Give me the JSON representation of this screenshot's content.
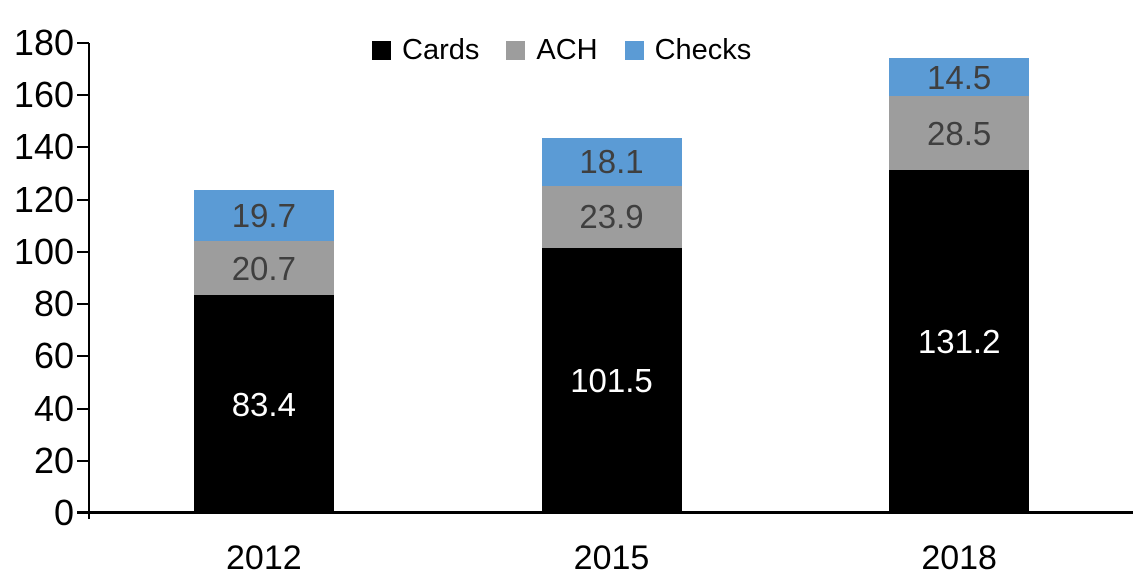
{
  "chart_data": {
    "type": "bar",
    "stacked": true,
    "title": "",
    "categories": [
      "2012",
      "2015",
      "2018"
    ],
    "series": [
      {
        "name": "Cards",
        "color": "#000000",
        "label_color": "#ffffff",
        "values": [
          83.4,
          101.5,
          131.2
        ]
      },
      {
        "name": "ACH",
        "color": "#9d9d9d",
        "label_color": "#3f3f3f",
        "values": [
          20.7,
          23.9,
          28.5
        ]
      },
      {
        "name": "Checks",
        "color": "#5b9bd5",
        "label_color": "#3f3f3f",
        "values": [
          19.7,
          18.1,
          14.5
        ]
      }
    ],
    "ylim": [
      0,
      180
    ],
    "ytick_step": 20,
    "yticks": [
      0,
      20,
      40,
      60,
      80,
      100,
      120,
      140,
      160,
      180
    ],
    "legend_position": "top",
    "grid": false,
    "axis_color": "#000000",
    "data_label_decimals": 1
  }
}
